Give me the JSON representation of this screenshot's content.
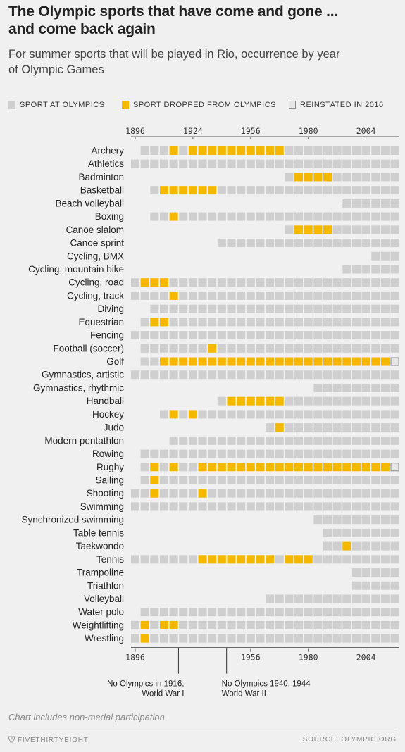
{
  "header": {
    "title_line1": "The Olympic sports that have come and gone ...",
    "title_line2": "and come back again",
    "subtitle_line1": "For summer sports that will be played in Rio, occurrence by year",
    "subtitle_line2": "of Olympic Games"
  },
  "legend": {
    "present": "SPORT AT OLYMPICS",
    "dropped": "SPORT DROPPED FROM OLYMPICS",
    "reinstated": "REINSTATED IN 2016"
  },
  "colors": {
    "background": "#f0f0f0",
    "present": "#cfcfcf",
    "dropped": "#f5b800",
    "reinstated_stroke": "#8a8a8a",
    "text": "#222222"
  },
  "chart_data": {
    "type": "heatmap",
    "games": [
      1896,
      1900,
      1904,
      1908,
      1912,
      1920,
      1924,
      1928,
      1932,
      1936,
      1948,
      1952,
      1956,
      1960,
      1964,
      1968,
      1972,
      1976,
      1980,
      1984,
      1988,
      1992,
      1996,
      2000,
      2004,
      2008,
      2012,
      2016
    ],
    "top_tick_labels": [
      "1896",
      "1924",
      "1956",
      "1980",
      "2004"
    ],
    "bottom_tick_labels": [
      "1896",
      "1956",
      "1980",
      "2004"
    ],
    "status_legend": {
      "0": "not held",
      "1": "sport at Olympics",
      "2": "sport dropped from Olympics",
      "3": "reinstated in 2016"
    },
    "sports": [
      {
        "name": "Archery",
        "status": [
          0,
          1,
          1,
          1,
          2,
          1,
          2,
          2,
          2,
          2,
          2,
          2,
          2,
          2,
          2,
          2,
          1,
          1,
          1,
          1,
          1,
          1,
          1,
          1,
          1,
          1,
          1,
          1
        ]
      },
      {
        "name": "Athletics",
        "status": [
          1,
          1,
          1,
          1,
          1,
          1,
          1,
          1,
          1,
          1,
          1,
          1,
          1,
          1,
          1,
          1,
          1,
          1,
          1,
          1,
          1,
          1,
          1,
          1,
          1,
          1,
          1,
          1
        ]
      },
      {
        "name": "Badminton",
        "status": [
          0,
          0,
          0,
          0,
          0,
          0,
          0,
          0,
          0,
          0,
          0,
          0,
          0,
          0,
          0,
          0,
          1,
          2,
          2,
          2,
          2,
          1,
          1,
          1,
          1,
          1,
          1,
          1
        ]
      },
      {
        "name": "Basketball",
        "status": [
          0,
          0,
          1,
          2,
          2,
          2,
          2,
          2,
          2,
          1,
          1,
          1,
          1,
          1,
          1,
          1,
          1,
          1,
          1,
          1,
          1,
          1,
          1,
          1,
          1,
          1,
          1,
          1
        ]
      },
      {
        "name": "Beach volleyball",
        "status": [
          0,
          0,
          0,
          0,
          0,
          0,
          0,
          0,
          0,
          0,
          0,
          0,
          0,
          0,
          0,
          0,
          0,
          0,
          0,
          0,
          0,
          0,
          1,
          1,
          1,
          1,
          1,
          1
        ]
      },
      {
        "name": "Boxing",
        "status": [
          0,
          0,
          1,
          1,
          2,
          1,
          1,
          1,
          1,
          1,
          1,
          1,
          1,
          1,
          1,
          1,
          1,
          1,
          1,
          1,
          1,
          1,
          1,
          1,
          1,
          1,
          1,
          1
        ]
      },
      {
        "name": "Canoe slalom",
        "status": [
          0,
          0,
          0,
          0,
          0,
          0,
          0,
          0,
          0,
          0,
          0,
          0,
          0,
          0,
          0,
          0,
          1,
          2,
          2,
          2,
          2,
          1,
          1,
          1,
          1,
          1,
          1,
          1
        ]
      },
      {
        "name": "Canoe sprint",
        "status": [
          0,
          0,
          0,
          0,
          0,
          0,
          0,
          0,
          0,
          1,
          1,
          1,
          1,
          1,
          1,
          1,
          1,
          1,
          1,
          1,
          1,
          1,
          1,
          1,
          1,
          1,
          1,
          1
        ]
      },
      {
        "name": "Cycling, BMX",
        "status": [
          0,
          0,
          0,
          0,
          0,
          0,
          0,
          0,
          0,
          0,
          0,
          0,
          0,
          0,
          0,
          0,
          0,
          0,
          0,
          0,
          0,
          0,
          0,
          0,
          0,
          1,
          1,
          1
        ]
      },
      {
        "name": "Cycling, mountain bike",
        "status": [
          0,
          0,
          0,
          0,
          0,
          0,
          0,
          0,
          0,
          0,
          0,
          0,
          0,
          0,
          0,
          0,
          0,
          0,
          0,
          0,
          0,
          0,
          1,
          1,
          1,
          1,
          1,
          1
        ]
      },
      {
        "name": "Cycling, road",
        "status": [
          1,
          2,
          2,
          2,
          1,
          1,
          1,
          1,
          1,
          1,
          1,
          1,
          1,
          1,
          1,
          1,
          1,
          1,
          1,
          1,
          1,
          1,
          1,
          1,
          1,
          1,
          1,
          1
        ]
      },
      {
        "name": "Cycling, track",
        "status": [
          1,
          1,
          1,
          1,
          2,
          1,
          1,
          1,
          1,
          1,
          1,
          1,
          1,
          1,
          1,
          1,
          1,
          1,
          1,
          1,
          1,
          1,
          1,
          1,
          1,
          1,
          1,
          1
        ]
      },
      {
        "name": "Diving",
        "status": [
          0,
          0,
          1,
          1,
          1,
          1,
          1,
          1,
          1,
          1,
          1,
          1,
          1,
          1,
          1,
          1,
          1,
          1,
          1,
          1,
          1,
          1,
          1,
          1,
          1,
          1,
          1,
          1
        ]
      },
      {
        "name": "Equestrian",
        "status": [
          0,
          1,
          2,
          2,
          1,
          1,
          1,
          1,
          1,
          1,
          1,
          1,
          1,
          1,
          1,
          1,
          1,
          1,
          1,
          1,
          1,
          1,
          1,
          1,
          1,
          1,
          1,
          1
        ]
      },
      {
        "name": "Fencing",
        "status": [
          1,
          1,
          1,
          1,
          1,
          1,
          1,
          1,
          1,
          1,
          1,
          1,
          1,
          1,
          1,
          1,
          1,
          1,
          1,
          1,
          1,
          1,
          1,
          1,
          1,
          1,
          1,
          1
        ]
      },
      {
        "name": "Football (soccer)",
        "status": [
          0,
          1,
          1,
          1,
          1,
          1,
          1,
          1,
          2,
          1,
          1,
          1,
          1,
          1,
          1,
          1,
          1,
          1,
          1,
          1,
          1,
          1,
          1,
          1,
          1,
          1,
          1,
          1
        ]
      },
      {
        "name": "Golf",
        "status": [
          0,
          1,
          1,
          2,
          2,
          2,
          2,
          2,
          2,
          2,
          2,
          2,
          2,
          2,
          2,
          2,
          2,
          2,
          2,
          2,
          2,
          2,
          2,
          2,
          2,
          2,
          2,
          3
        ]
      },
      {
        "name": "Gymnastics, artistic",
        "status": [
          1,
          1,
          1,
          1,
          1,
          1,
          1,
          1,
          1,
          1,
          1,
          1,
          1,
          1,
          1,
          1,
          1,
          1,
          1,
          1,
          1,
          1,
          1,
          1,
          1,
          1,
          1,
          1
        ]
      },
      {
        "name": "Gymnastics, rhythmic",
        "status": [
          0,
          0,
          0,
          0,
          0,
          0,
          0,
          0,
          0,
          0,
          0,
          0,
          0,
          0,
          0,
          0,
          0,
          0,
          0,
          1,
          1,
          1,
          1,
          1,
          1,
          1,
          1,
          1
        ]
      },
      {
        "name": "Handball",
        "status": [
          0,
          0,
          0,
          0,
          0,
          0,
          0,
          0,
          0,
          1,
          2,
          2,
          2,
          2,
          2,
          2,
          1,
          1,
          1,
          1,
          1,
          1,
          1,
          1,
          1,
          1,
          1,
          1
        ]
      },
      {
        "name": "Hockey",
        "status": [
          0,
          0,
          0,
          1,
          2,
          1,
          2,
          1,
          1,
          1,
          1,
          1,
          1,
          1,
          1,
          1,
          1,
          1,
          1,
          1,
          1,
          1,
          1,
          1,
          1,
          1,
          1,
          1
        ]
      },
      {
        "name": "Judo",
        "status": [
          0,
          0,
          0,
          0,
          0,
          0,
          0,
          0,
          0,
          0,
          0,
          0,
          0,
          0,
          1,
          2,
          1,
          1,
          1,
          1,
          1,
          1,
          1,
          1,
          1,
          1,
          1,
          1
        ]
      },
      {
        "name": "Modern pentathlon",
        "status": [
          0,
          0,
          0,
          0,
          1,
          1,
          1,
          1,
          1,
          1,
          1,
          1,
          1,
          1,
          1,
          1,
          1,
          1,
          1,
          1,
          1,
          1,
          1,
          1,
          1,
          1,
          1,
          1
        ]
      },
      {
        "name": "Rowing",
        "status": [
          0,
          1,
          1,
          1,
          1,
          1,
          1,
          1,
          1,
          1,
          1,
          1,
          1,
          1,
          1,
          1,
          1,
          1,
          1,
          1,
          1,
          1,
          1,
          1,
          1,
          1,
          1,
          1
        ]
      },
      {
        "name": "Rugby",
        "status": [
          0,
          1,
          2,
          1,
          2,
          1,
          1,
          2,
          2,
          2,
          2,
          2,
          2,
          2,
          2,
          2,
          2,
          2,
          2,
          2,
          2,
          2,
          2,
          2,
          2,
          2,
          2,
          3
        ]
      },
      {
        "name": "Sailing",
        "status": [
          0,
          1,
          2,
          1,
          1,
          1,
          1,
          1,
          1,
          1,
          1,
          1,
          1,
          1,
          1,
          1,
          1,
          1,
          1,
          1,
          1,
          1,
          1,
          1,
          1,
          1,
          1,
          1
        ]
      },
      {
        "name": "Shooting",
        "status": [
          1,
          1,
          2,
          1,
          1,
          1,
          1,
          2,
          1,
          1,
          1,
          1,
          1,
          1,
          1,
          1,
          1,
          1,
          1,
          1,
          1,
          1,
          1,
          1,
          1,
          1,
          1,
          1
        ]
      },
      {
        "name": "Swimming",
        "status": [
          1,
          1,
          1,
          1,
          1,
          1,
          1,
          1,
          1,
          1,
          1,
          1,
          1,
          1,
          1,
          1,
          1,
          1,
          1,
          1,
          1,
          1,
          1,
          1,
          1,
          1,
          1,
          1
        ]
      },
      {
        "name": "Synchronized swimming",
        "status": [
          0,
          0,
          0,
          0,
          0,
          0,
          0,
          0,
          0,
          0,
          0,
          0,
          0,
          0,
          0,
          0,
          0,
          0,
          0,
          1,
          1,
          1,
          1,
          1,
          1,
          1,
          1,
          1
        ]
      },
      {
        "name": "Table tennis",
        "status": [
          0,
          0,
          0,
          0,
          0,
          0,
          0,
          0,
          0,
          0,
          0,
          0,
          0,
          0,
          0,
          0,
          0,
          0,
          0,
          0,
          1,
          1,
          1,
          1,
          1,
          1,
          1,
          1
        ]
      },
      {
        "name": "Taekwondo",
        "status": [
          0,
          0,
          0,
          0,
          0,
          0,
          0,
          0,
          0,
          0,
          0,
          0,
          0,
          0,
          0,
          0,
          0,
          0,
          0,
          0,
          1,
          1,
          2,
          1,
          1,
          1,
          1,
          1
        ]
      },
      {
        "name": "Tennis",
        "status": [
          1,
          1,
          1,
          1,
          1,
          1,
          1,
          2,
          2,
          2,
          2,
          2,
          2,
          2,
          2,
          1,
          2,
          2,
          2,
          1,
          1,
          1,
          1,
          1,
          1,
          1,
          1,
          1
        ]
      },
      {
        "name": "Trampoline",
        "status": [
          0,
          0,
          0,
          0,
          0,
          0,
          0,
          0,
          0,
          0,
          0,
          0,
          0,
          0,
          0,
          0,
          0,
          0,
          0,
          0,
          0,
          0,
          0,
          1,
          1,
          1,
          1,
          1
        ]
      },
      {
        "name": "Triathlon",
        "status": [
          0,
          0,
          0,
          0,
          0,
          0,
          0,
          0,
          0,
          0,
          0,
          0,
          0,
          0,
          0,
          0,
          0,
          0,
          0,
          0,
          0,
          0,
          0,
          1,
          1,
          1,
          1,
          1
        ]
      },
      {
        "name": "Volleyball",
        "status": [
          0,
          0,
          0,
          0,
          0,
          0,
          0,
          0,
          0,
          0,
          0,
          0,
          0,
          0,
          1,
          1,
          1,
          1,
          1,
          1,
          1,
          1,
          1,
          1,
          1,
          1,
          1,
          1
        ]
      },
      {
        "name": "Water polo",
        "status": [
          0,
          1,
          1,
          1,
          1,
          1,
          1,
          1,
          1,
          1,
          1,
          1,
          1,
          1,
          1,
          1,
          1,
          1,
          1,
          1,
          1,
          1,
          1,
          1,
          1,
          1,
          1,
          1
        ]
      },
      {
        "name": "Weightlifting",
        "status": [
          1,
          2,
          1,
          2,
          2,
          1,
          1,
          1,
          1,
          1,
          1,
          1,
          1,
          1,
          1,
          1,
          1,
          1,
          1,
          1,
          1,
          1,
          1,
          1,
          1,
          1,
          1,
          1
        ]
      },
      {
        "name": "Wrestling",
        "status": [
          1,
          2,
          1,
          1,
          1,
          1,
          1,
          1,
          1,
          1,
          1,
          1,
          1,
          1,
          1,
          1,
          1,
          1,
          1,
          1,
          1,
          1,
          1,
          1,
          1,
          1,
          1,
          1
        ]
      }
    ],
    "annotations": [
      {
        "after_game": 1912,
        "lines": [
          "No Olympics in 1916,",
          "World War I"
        ]
      },
      {
        "after_game": 1936,
        "lines": [
          "No Olympics 1940, 1944",
          "World War II"
        ]
      }
    ]
  },
  "footer": {
    "note": "Chart includes non-medal participation",
    "brand": "FIVETHIRTYEIGHT",
    "source": "SOURCE: OLYMPIC.ORG"
  }
}
